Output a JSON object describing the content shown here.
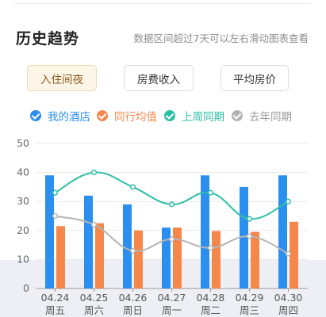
{
  "header": {
    "title": "历史趋势",
    "hint": "数据区间超过7天可以左右滑动图表查看"
  },
  "tabs": [
    {
      "label": "入住间夜",
      "active": true
    },
    {
      "label": "房费收入",
      "active": false
    },
    {
      "label": "平均房价",
      "active": false
    }
  ],
  "legend": [
    {
      "label": "我的酒店",
      "color": "#2b8ff0"
    },
    {
      "label": "同行均值",
      "color": "#f5874b"
    },
    {
      "label": "上周同期",
      "color": "#2dbfa6"
    },
    {
      "label": "去年同期",
      "color": "#b4b4b4"
    }
  ],
  "chart_data": {
    "type": "bar",
    "categories": [
      "04.24",
      "04.25",
      "04.26",
      "04.27",
      "04.28",
      "04.29",
      "04.30"
    ],
    "weekdays": [
      "周五",
      "周六",
      "周日",
      "周一",
      "周二",
      "周三",
      "周四"
    ],
    "ylim": [
      0,
      50
    ],
    "yticks": [
      0,
      10,
      20,
      30,
      40,
      50
    ],
    "grid": true,
    "series": [
      {
        "name": "我的酒店",
        "kind": "bar",
        "color": "#2b8ff0",
        "values": [
          39,
          32,
          29,
          21,
          39,
          35,
          39
        ]
      },
      {
        "name": "同行均值",
        "kind": "bar",
        "color": "#f5874b",
        "values": [
          21.5,
          22.5,
          20,
          21,
          19.8,
          19.5,
          23
        ]
      },
      {
        "name": "上周同期",
        "kind": "line",
        "color": "#2dbfa6",
        "values": [
          33,
          40,
          35,
          29,
          33,
          24,
          30
        ]
      },
      {
        "name": "去年同期",
        "kind": "line",
        "color": "#b4b4b4",
        "values": [
          25,
          22,
          13,
          17,
          14,
          18,
          12
        ]
      }
    ]
  }
}
